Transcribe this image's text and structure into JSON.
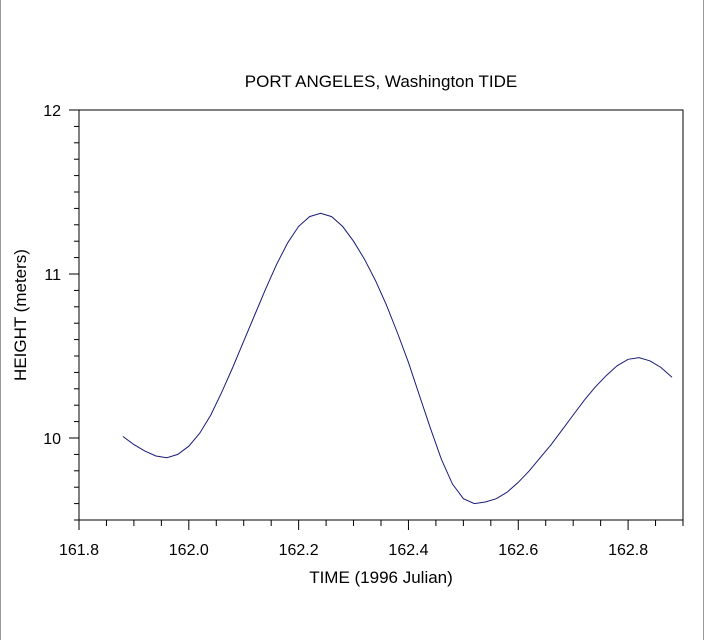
{
  "chart_data": {
    "type": "line",
    "title": "PORT ANGELES, Washington TIDE",
    "xlabel": "TIME (1996 Julian)",
    "ylabel": "HEIGHT (meters)",
    "xlim": [
      161.8,
      162.9
    ],
    "ylim": [
      9.5,
      12.0
    ],
    "x_major_ticks": [
      161.8,
      162.0,
      162.2,
      162.4,
      162.6,
      162.8
    ],
    "x_tick_labels": [
      "161.8",
      "162.0",
      "162.2",
      "162.4",
      "162.6",
      "162.8"
    ],
    "y_major_ticks": [
      10,
      11,
      12
    ],
    "y_tick_labels": [
      "10",
      "11",
      "12"
    ],
    "grid": false,
    "line_color": "#1a1a7a",
    "series": [
      {
        "x": [
          161.88,
          161.9,
          161.92,
          161.94,
          161.96,
          161.98,
          162.0,
          162.02,
          162.04,
          162.06,
          162.08,
          162.1,
          162.12,
          162.14,
          162.16,
          162.18,
          162.2,
          162.22,
          162.24,
          162.26,
          162.28,
          162.3,
          162.32,
          162.34,
          162.36,
          162.38,
          162.4,
          162.42,
          162.44,
          162.46,
          162.48,
          162.5,
          162.52,
          162.54,
          162.56,
          162.58,
          162.6,
          162.62,
          162.64,
          162.66,
          162.68,
          162.7,
          162.72,
          162.74,
          162.76,
          162.78,
          162.8,
          162.82,
          162.84,
          162.86,
          162.88
        ],
        "values": [
          10.01,
          9.96,
          9.92,
          9.89,
          9.88,
          9.9,
          9.95,
          10.03,
          10.14,
          10.28,
          10.43,
          10.59,
          10.75,
          10.91,
          11.06,
          11.19,
          11.29,
          11.35,
          11.37,
          11.35,
          11.29,
          11.2,
          11.09,
          10.96,
          10.81,
          10.64,
          10.46,
          10.26,
          10.06,
          9.87,
          9.72,
          9.63,
          9.6,
          9.61,
          9.63,
          9.67,
          9.73,
          9.8,
          9.88,
          9.96,
          10.05,
          10.14,
          10.23,
          10.31,
          10.38,
          10.44,
          10.48,
          10.49,
          10.47,
          10.43,
          10.37
        ]
      }
    ]
  }
}
